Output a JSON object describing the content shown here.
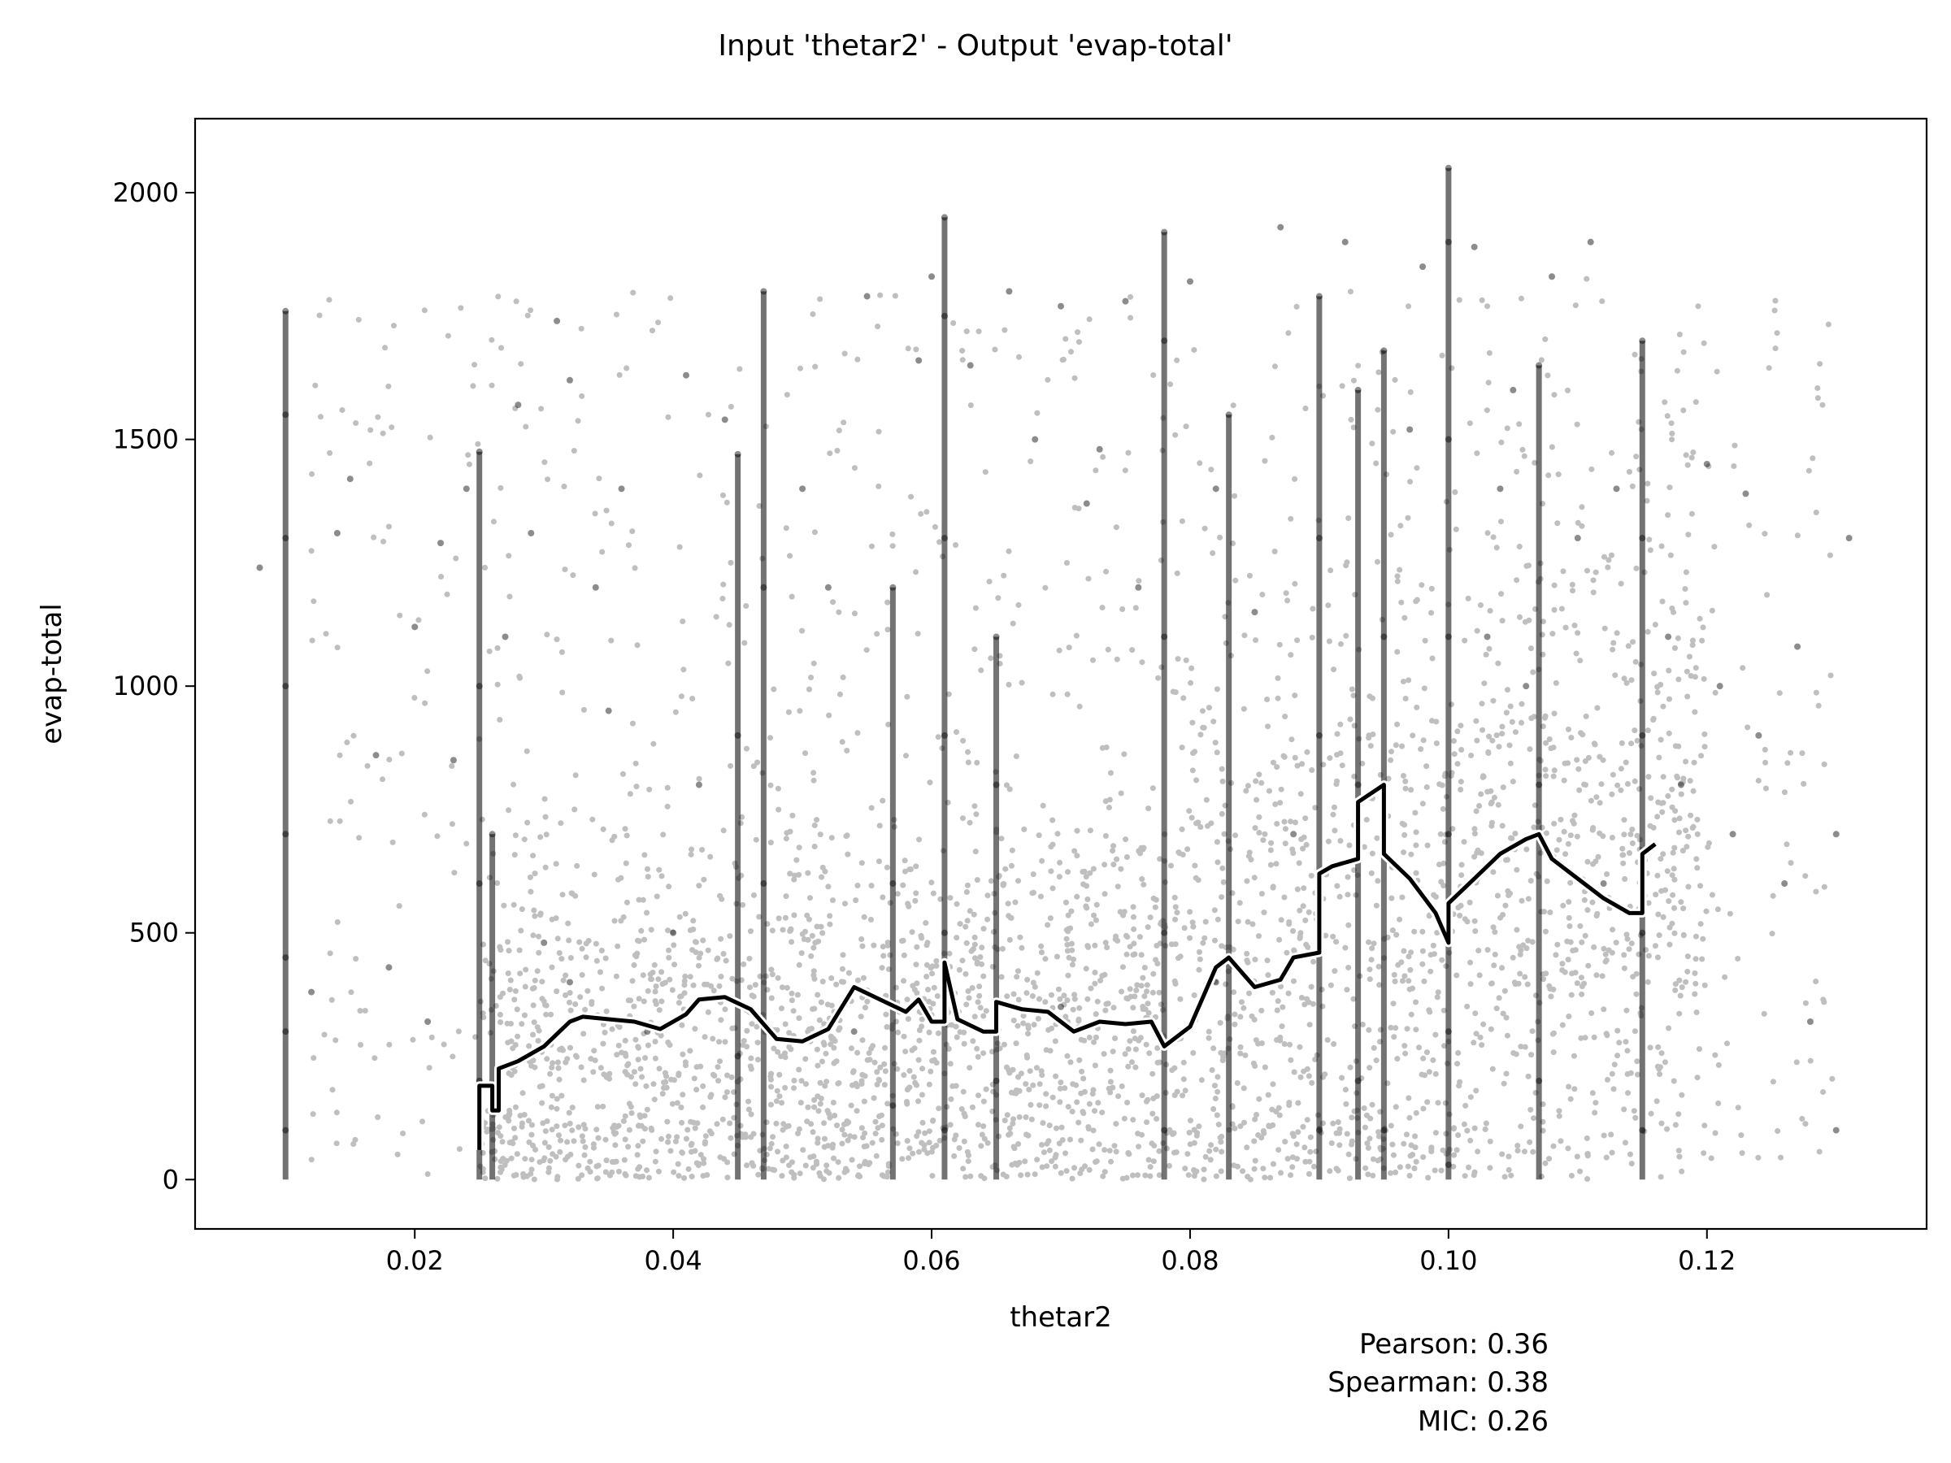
{
  "chart_data": {
    "type": "scatter",
    "title": "Input 'thetar2' - Output 'evap-total'",
    "xlabel": "thetar2",
    "ylabel": "evap-total",
    "xlim": [
      0.003,
      0.137
    ],
    "ylim": [
      -100,
      2150
    ],
    "x_ticks": [
      0.02,
      0.04,
      0.06,
      0.08,
      0.1,
      0.12
    ],
    "x_tick_labels": [
      "0.02",
      "0.04",
      "0.06",
      "0.08",
      "0.10",
      "0.12"
    ],
    "y_ticks": [
      0,
      500,
      1000,
      1500,
      2000
    ],
    "y_tick_labels": [
      "0",
      "500",
      "1000",
      "1500",
      "2000"
    ],
    "grid": false,
    "point_color": "#000000",
    "trend_color": "#000000",
    "trend_outline_color": "#ffffff",
    "stats": [
      "Pearson: 0.36",
      "Spearman: 0.38",
      "MIC: 0.26"
    ],
    "series": [
      {
        "points": [
          [
            0.01,
            100
          ],
          [
            0.01,
            300
          ],
          [
            0.01,
            450
          ],
          [
            0.01,
            700
          ],
          [
            0.01,
            1000
          ],
          [
            0.01,
            1300
          ],
          [
            0.01,
            1550
          ],
          [
            0.01,
            1760
          ],
          [
            0.008,
            1240
          ],
          [
            0.012,
            380
          ],
          [
            0.014,
            1310
          ],
          [
            0.015,
            1420
          ],
          [
            0.017,
            860
          ],
          [
            0.018,
            430
          ],
          [
            0.02,
            1120
          ],
          [
            0.021,
            320
          ],
          [
            0.022,
            1290
          ],
          [
            0.023,
            850
          ],
          [
            0.024,
            1400
          ],
          [
            0.025,
            200
          ],
          [
            0.025,
            600
          ],
          [
            0.025,
            1000
          ],
          [
            0.025,
            1475
          ],
          [
            0.026,
            150
          ],
          [
            0.026,
            700
          ],
          [
            0.027,
            1100
          ],
          [
            0.028,
            1570
          ],
          [
            0.029,
            1310
          ],
          [
            0.03,
            480
          ],
          [
            0.031,
            1740
          ],
          [
            0.032,
            400
          ],
          [
            0.032,
            1620
          ],
          [
            0.034,
            1200
          ],
          [
            0.035,
            950
          ],
          [
            0.036,
            1400
          ],
          [
            0.038,
            300
          ],
          [
            0.04,
            500
          ],
          [
            0.041,
            1630
          ],
          [
            0.042,
            800
          ],
          [
            0.044,
            1540
          ],
          [
            0.045,
            250
          ],
          [
            0.045,
            900
          ],
          [
            0.045,
            1470
          ],
          [
            0.047,
            600
          ],
          [
            0.047,
            1200
          ],
          [
            0.047,
            1800
          ],
          [
            0.05,
            1400
          ],
          [
            0.052,
            1200
          ],
          [
            0.054,
            300
          ],
          [
            0.055,
            1790
          ],
          [
            0.057,
            150
          ],
          [
            0.057,
            600
          ],
          [
            0.057,
            1200
          ],
          [
            0.059,
            1660
          ],
          [
            0.06,
            1830
          ],
          [
            0.061,
            100
          ],
          [
            0.061,
            500
          ],
          [
            0.061,
            900
          ],
          [
            0.061,
            1300
          ],
          [
            0.061,
            1750
          ],
          [
            0.061,
            1950
          ],
          [
            0.063,
            1650
          ],
          [
            0.065,
            200
          ],
          [
            0.065,
            800
          ],
          [
            0.065,
            1100
          ],
          [
            0.066,
            1800
          ],
          [
            0.068,
            1500
          ],
          [
            0.07,
            350
          ],
          [
            0.07,
            1770
          ],
          [
            0.072,
            1370
          ],
          [
            0.073,
            1480
          ],
          [
            0.075,
            1780
          ],
          [
            0.076,
            1200
          ],
          [
            0.078,
            100
          ],
          [
            0.078,
            500
          ],
          [
            0.078,
            1100
          ],
          [
            0.078,
            1700
          ],
          [
            0.078,
            1920
          ],
          [
            0.08,
            1820
          ],
          [
            0.082,
            400
          ],
          [
            0.082,
            1400
          ],
          [
            0.083,
            1550
          ],
          [
            0.085,
            1150
          ],
          [
            0.087,
            1930
          ],
          [
            0.088,
            700
          ],
          [
            0.09,
            100
          ],
          [
            0.09,
            500
          ],
          [
            0.09,
            900
          ],
          [
            0.09,
            1300
          ],
          [
            0.09,
            1790
          ],
          [
            0.092,
            1900
          ],
          [
            0.093,
            200
          ],
          [
            0.093,
            800
          ],
          [
            0.093,
            1600
          ],
          [
            0.095,
            100
          ],
          [
            0.095,
            700
          ],
          [
            0.095,
            1100
          ],
          [
            0.095,
            1680
          ],
          [
            0.097,
            1520
          ],
          [
            0.098,
            1850
          ],
          [
            0.1,
            30
          ],
          [
            0.1,
            300
          ],
          [
            0.1,
            700
          ],
          [
            0.1,
            1100
          ],
          [
            0.1,
            1500
          ],
          [
            0.1,
            1900
          ],
          [
            0.1,
            2050
          ],
          [
            0.102,
            1890
          ],
          [
            0.103,
            1100
          ],
          [
            0.104,
            1400
          ],
          [
            0.105,
            1600
          ],
          [
            0.106,
            1000
          ],
          [
            0.107,
            200
          ],
          [
            0.107,
            800
          ],
          [
            0.107,
            1650
          ],
          [
            0.108,
            1830
          ],
          [
            0.11,
            1300
          ],
          [
            0.111,
            1900
          ],
          [
            0.112,
            600
          ],
          [
            0.113,
            1400
          ],
          [
            0.115,
            100
          ],
          [
            0.115,
            500
          ],
          [
            0.115,
            900
          ],
          [
            0.115,
            1300
          ],
          [
            0.115,
            1700
          ],
          [
            0.117,
            1100
          ],
          [
            0.118,
            800
          ],
          [
            0.12,
            1450
          ],
          [
            0.121,
            1000
          ],
          [
            0.122,
            700
          ],
          [
            0.123,
            1390
          ],
          [
            0.124,
            900
          ],
          [
            0.126,
            600
          ],
          [
            0.127,
            1080
          ],
          [
            0.128,
            320
          ],
          [
            0.13,
            100
          ],
          [
            0.13,
            700
          ],
          [
            0.131,
            1300
          ]
        ]
      },
      {
        "type": "line",
        "points": [
          [
            0.025,
            60
          ],
          [
            0.025,
            190
          ],
          [
            0.026,
            190
          ],
          [
            0.026,
            140
          ],
          [
            0.0265,
            140
          ],
          [
            0.0265,
            225
          ],
          [
            0.028,
            240
          ],
          [
            0.03,
            270
          ],
          [
            0.032,
            320
          ],
          [
            0.033,
            330
          ],
          [
            0.035,
            325
          ],
          [
            0.037,
            320
          ],
          [
            0.039,
            305
          ],
          [
            0.041,
            335
          ],
          [
            0.042,
            365
          ],
          [
            0.044,
            370
          ],
          [
            0.046,
            345
          ],
          [
            0.048,
            285
          ],
          [
            0.05,
            280
          ],
          [
            0.052,
            305
          ],
          [
            0.054,
            390
          ],
          [
            0.056,
            365
          ],
          [
            0.058,
            340
          ],
          [
            0.059,
            365
          ],
          [
            0.06,
            320
          ],
          [
            0.061,
            320
          ],
          [
            0.061,
            440
          ],
          [
            0.062,
            325
          ],
          [
            0.064,
            300
          ],
          [
            0.065,
            300
          ],
          [
            0.065,
            360
          ],
          [
            0.067,
            345
          ],
          [
            0.069,
            340
          ],
          [
            0.071,
            300
          ],
          [
            0.073,
            320
          ],
          [
            0.075,
            315
          ],
          [
            0.077,
            320
          ],
          [
            0.078,
            270
          ],
          [
            0.08,
            310
          ],
          [
            0.081,
            370
          ],
          [
            0.082,
            430
          ],
          [
            0.083,
            450
          ],
          [
            0.084,
            420
          ],
          [
            0.085,
            390
          ],
          [
            0.087,
            405
          ],
          [
            0.088,
            450
          ],
          [
            0.09,
            460
          ],
          [
            0.09,
            620
          ],
          [
            0.091,
            635
          ],
          [
            0.093,
            650
          ],
          [
            0.093,
            765
          ],
          [
            0.095,
            800
          ],
          [
            0.095,
            660
          ],
          [
            0.097,
            610
          ],
          [
            0.099,
            540
          ],
          [
            0.1,
            480
          ],
          [
            0.1,
            560
          ],
          [
            0.102,
            610
          ],
          [
            0.104,
            660
          ],
          [
            0.106,
            690
          ],
          [
            0.107,
            700
          ],
          [
            0.108,
            650
          ],
          [
            0.11,
            610
          ],
          [
            0.112,
            570
          ],
          [
            0.114,
            540
          ],
          [
            0.115,
            540
          ],
          [
            0.115,
            660
          ],
          [
            0.116,
            680
          ]
        ]
      }
    ]
  }
}
